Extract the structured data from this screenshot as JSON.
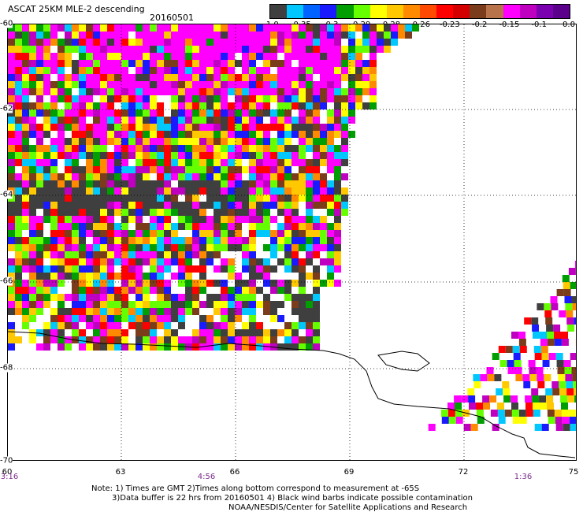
{
  "header": {
    "title": "ASCAT 25KM MLE-2 descending",
    "date": "20160501"
  },
  "colorbar": {
    "colors": [
      "#3f3f3f",
      "#00c8ff",
      "#0062ff",
      "#1a1aff",
      "#009e00",
      "#66ff00",
      "#ffff00",
      "#ffc800",
      "#ff8a00",
      "#ff4a00",
      "#ff0000",
      "#d40000",
      "#7a3c1a",
      "#b8734a",
      "#ff00ff",
      "#c000c0",
      "#7a00b0",
      "#5a008a"
    ],
    "labels": [
      "-1.0",
      "-0.35",
      "-0.3",
      "-0.29",
      "-0.28",
      "-0.26",
      "-0.23",
      "-0.2",
      "-0.15",
      "-0.1",
      "0.0"
    ]
  },
  "axes": {
    "lat_labels": [
      "-60",
      "-62",
      "-64",
      "-66",
      "-68",
      "-70"
    ],
    "lon_labels": [
      "60",
      "63",
      "66",
      "69",
      "72",
      "75"
    ],
    "time_labels": [
      "3:16",
      "4:56",
      "1:36"
    ]
  },
  "footer": {
    "note1": "Note: 1) Times are GMT 2)Times along bottom correspond to measurement at -65S",
    "note2": "3)Data buffer is 22 hrs from 20160501 4) Black wind barbs indicate possible contamination",
    "credit": "NOAA/NESDIS/Center for Satellite Applications and Research"
  }
}
